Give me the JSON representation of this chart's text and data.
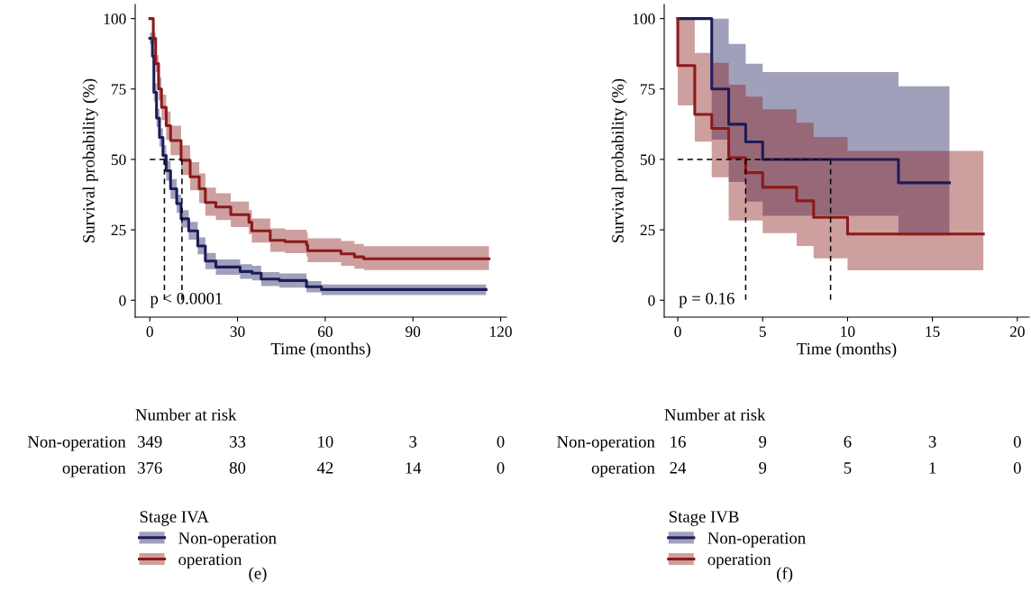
{
  "chart_data": [
    {
      "type": "step",
      "xlabel": "Time (months)",
      "ylabel": "Survival probability (%)",
      "legend_title": "Stage IVA",
      "legend": "bottom",
      "xlim": [
        -5,
        122
      ],
      "ylim": [
        -6,
        105
      ],
      "xticks": [
        0,
        30,
        60,
        90,
        120
      ],
      "yticks": [
        0,
        25,
        50,
        75,
        100
      ],
      "series": [
        {
          "name": "Non-operation",
          "color": "#1c1c5a",
          "x": [
            0,
            0.9,
            1.4,
            2.3,
            3.3,
            4.5,
            5.6,
            7.1,
            9.2,
            10.7,
            13.3,
            16.4,
            19,
            22.6,
            30.9,
            35,
            38.1,
            44.3,
            53.6,
            58.7,
            115
          ],
          "values": [
            93,
            86.7,
            73.8,
            64.7,
            57.8,
            51.4,
            46,
            39.6,
            34.3,
            28.9,
            24.6,
            19.3,
            13.9,
            11.8,
            10.2,
            9.6,
            7.5,
            7,
            4.8,
            3.8,
            3.8
          ],
          "upper": [
            95,
            89,
            77,
            68,
            61,
            55,
            49.5,
            43,
            37.5,
            32,
            27.8,
            22.3,
            16.8,
            14.5,
            12.8,
            12.2,
            10,
            9.5,
            6.8,
            5.6,
            5.6
          ],
          "lower": [
            91,
            84,
            70.5,
            61.5,
            54.5,
            48,
            42.5,
            36,
            31,
            25.8,
            21.5,
            16.3,
            11,
            9,
            7.6,
            7,
            5,
            4.5,
            2.8,
            1.8,
            1.8
          ]
        },
        {
          "name": "operation",
          "color": "#8b1a1a",
          "x": [
            0,
            1.2,
            2,
            3,
            4,
            5.6,
            7.1,
            10.7,
            13.8,
            16.9,
            19,
            22.6,
            27.7,
            33.9,
            34.9,
            41.2,
            46.3,
            53.6,
            54,
            61.8,
            65.4,
            70,
            73.2,
            116
          ],
          "values": [
            100,
            93,
            84,
            75,
            68.5,
            62,
            56.7,
            49.7,
            43.8,
            39.6,
            34.7,
            33.1,
            30.4,
            27.7,
            24.6,
            21.3,
            20.8,
            19.7,
            17.6,
            17.6,
            16.5,
            15.4,
            14.7,
            14.7
          ],
          "upper": [
            100,
            95,
            87,
            79,
            73,
            67,
            62,
            55,
            49,
            45,
            40,
            38,
            35,
            32,
            29,
            25.5,
            25,
            24,
            22,
            22,
            21,
            20,
            19.2,
            19.2
          ],
          "lower": [
            100,
            91,
            81,
            71,
            64,
            57,
            51.5,
            44.5,
            39,
            34.5,
            30,
            28.5,
            26,
            23.5,
            20.5,
            17.2,
            16.7,
            15.5,
            13.5,
            13.5,
            12.2,
            11.2,
            10.7,
            10.7
          ]
        },
        {
          "type": "line",
          "line_style": "dashed",
          "color": "#000000",
          "x": [
            0,
            11
          ],
          "values": [
            50,
            50
          ]
        },
        {
          "type": "line",
          "line_style": "dashed",
          "color": "#000000",
          "x": [
            5,
            5
          ],
          "values": [
            50,
            0
          ]
        },
        {
          "type": "line",
          "line_style": "dashed",
          "color": "#000000",
          "x": [
            11,
            11
          ],
          "values": [
            50,
            0
          ]
        }
      ],
      "annotations": [
        "p < 0.0001",
        "Number at risk",
        "Non-operation",
        "349",
        "33",
        "10",
        "3",
        "0",
        "operation",
        "376",
        "80",
        "42",
        "14",
        "0",
        "(e)"
      ]
    },
    {
      "type": "step",
      "xlabel": "Time (months)",
      "ylabel": "Survival probability (%)",
      "legend_title": "Stage IVB",
      "legend": "bottom",
      "xlim": [
        -0.8,
        20.7
      ],
      "ylim": [
        -6,
        105
      ],
      "xticks": [
        0,
        5,
        10,
        15,
        20
      ],
      "yticks": [
        0,
        25,
        50,
        75,
        100
      ],
      "series": [
        {
          "name": "Non-operation",
          "color": "#1c1c5a",
          "x": [
            0,
            2,
            3,
            4,
            5,
            13,
            16
          ],
          "values": [
            100,
            75,
            62.5,
            56.2,
            50,
            41.7,
            41.7
          ],
          "upper": [
            100,
            100,
            91,
            84,
            81,
            76,
            76
          ],
          "lower": [
            100,
            57,
            42,
            35,
            30,
            23,
            23
          ]
        },
        {
          "name": "operation",
          "color": "#8b1a1a",
          "x": [
            0,
            0,
            1,
            2,
            3,
            4,
            5,
            7,
            8,
            10,
            18
          ],
          "values": [
            100,
            83.3,
            66,
            61,
            50.6,
            45.3,
            40.1,
            35.3,
            29.4,
            23.5,
            23.5
          ],
          "upper": [
            100,
            100,
            87.8,
            84.3,
            76.5,
            72.3,
            67.8,
            63,
            58,
            53,
            53
          ],
          "lower": [
            100,
            69.2,
            56.3,
            43.7,
            28.3,
            28.3,
            23.8,
            19.3,
            14.9,
            10.6,
            10.6
          ]
        },
        {
          "type": "line",
          "line_style": "dashed",
          "color": "#000000",
          "x": [
            0,
            9
          ],
          "values": [
            50,
            50
          ]
        },
        {
          "type": "line",
          "line_style": "dashed",
          "color": "#000000",
          "x": [
            4,
            4
          ],
          "values": [
            50,
            0
          ]
        },
        {
          "type": "line",
          "line_style": "dashed",
          "color": "#000000",
          "x": [
            9,
            9
          ],
          "values": [
            50,
            0
          ]
        }
      ],
      "annotations": [
        "p = 0.16",
        "Number at risk",
        "Non-operation",
        "16",
        "9",
        "6",
        "3",
        "0",
        "operation",
        "24",
        "9",
        "5",
        "1",
        "0",
        "(f)"
      ]
    }
  ]
}
